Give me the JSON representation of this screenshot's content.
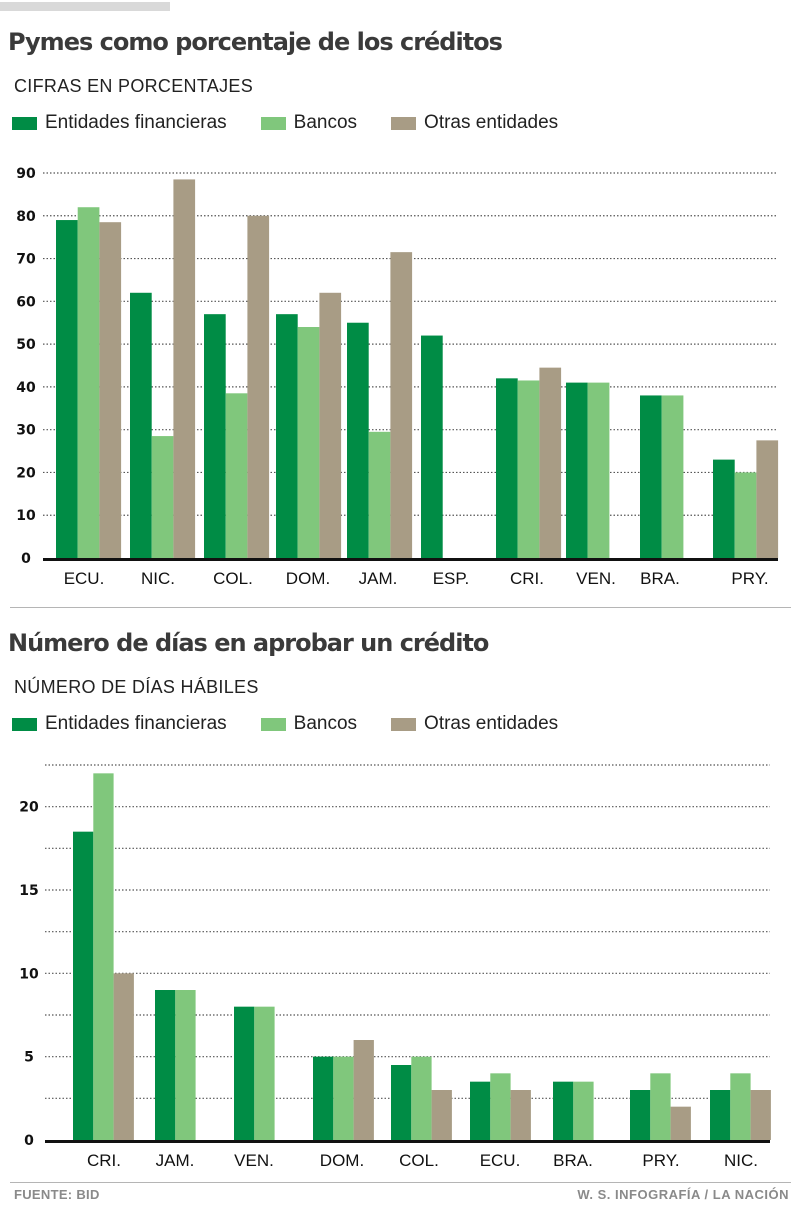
{
  "colors": {
    "entidades": "#008c45",
    "bancos": "#80c77c",
    "otras": "#a89c85",
    "grid": "#555555",
    "axis": "#111111"
  },
  "legend": [
    {
      "key": "entidades",
      "label": "Entidades financieras"
    },
    {
      "key": "bancos",
      "label": "Bancos"
    },
    {
      "key": "otras",
      "label": "Otras entidades"
    }
  ],
  "footer": {
    "source": "FUENTE: BID",
    "credit": "W. S. INFOGRAFÍA / LA NACIÓN"
  },
  "chart_data": [
    {
      "type": "bar",
      "title": "Pymes como porcentaje de los créditos",
      "subtitle": "CIFRAS EN PORCENTAJES",
      "xlabel": "",
      "ylabel": "",
      "ylim": [
        0,
        90
      ],
      "yticks": [
        0,
        10,
        20,
        30,
        40,
        50,
        60,
        70,
        80,
        90
      ],
      "grid": true,
      "legend_position": "top-left",
      "categories": [
        "ECU.",
        "NIC.",
        "COL.",
        "DOM.",
        "JAM.",
        "ESP.",
        "CRI.",
        "VEN.",
        "BRA.",
        "PRY."
      ],
      "series": [
        {
          "name": "Entidades financieras",
          "key": "entidades",
          "values": [
            79,
            62,
            57,
            57,
            55,
            52,
            42,
            41,
            38,
            23
          ]
        },
        {
          "name": "Bancos",
          "key": "bancos",
          "values": [
            82,
            28.5,
            38.5,
            54,
            29.5,
            null,
            41.5,
            41,
            38,
            20
          ]
        },
        {
          "name": "Otras entidades",
          "key": "otras",
          "values": [
            78.5,
            88.5,
            80,
            62,
            71.5,
            null,
            44.5,
            null,
            null,
            27.5
          ]
        }
      ]
    },
    {
      "type": "bar",
      "title": "Número de días en aprobar un crédito",
      "subtitle": "NÚMERO DE DÍAS HÁBILES",
      "xlabel": "",
      "ylabel": "",
      "ylim": [
        0,
        22.5
      ],
      "yticks": [
        0,
        5,
        10,
        15,
        20
      ],
      "minor_grid_step": 2.5,
      "grid": true,
      "legend_position": "top-left",
      "categories": [
        "CRI.",
        "JAM.",
        "VEN.",
        "DOM.",
        "COL.",
        "ECU.",
        "BRA.",
        "PRY.",
        "NIC."
      ],
      "series": [
        {
          "name": "Entidades financieras",
          "key": "entidades",
          "values": [
            18.5,
            9,
            8,
            5,
            4.5,
            3.5,
            3.5,
            3,
            3
          ]
        },
        {
          "name": "Bancos",
          "key": "bancos",
          "values": [
            22,
            9,
            8,
            5,
            5,
            4,
            3.5,
            4,
            4
          ]
        },
        {
          "name": "Otras entidades",
          "key": "otras",
          "values": [
            10,
            null,
            null,
            6,
            3,
            3,
            null,
            2,
            3
          ]
        }
      ]
    }
  ]
}
